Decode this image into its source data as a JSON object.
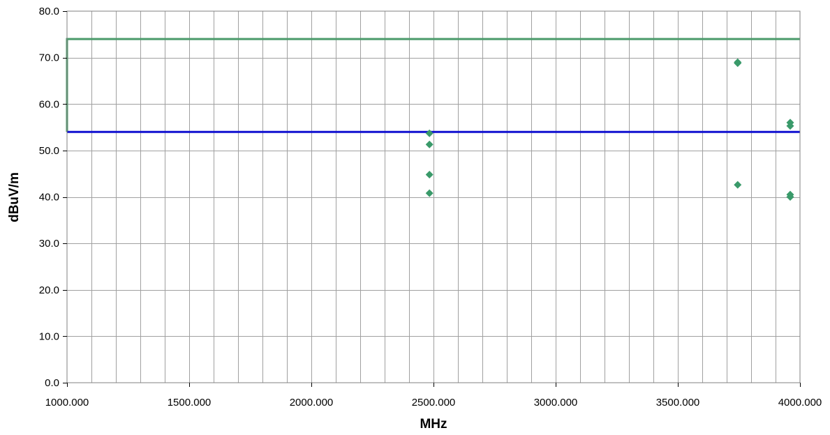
{
  "chart_data": {
    "type": "scatter",
    "title": "",
    "xlabel": "MHz",
    "ylabel": "dBuV/m",
    "xlim": [
      1000,
      4000
    ],
    "ylim": [
      0,
      80
    ],
    "x_ticks": [
      "1000.000",
      "1500.000",
      "2000.000",
      "2500.000",
      "3000.000",
      "3500.000",
      "4000.000"
    ],
    "y_ticks": [
      "0.0",
      "10.0",
      "20.0",
      "30.0",
      "40.0",
      "50.0",
      "60.0",
      "70.0",
      "80.0"
    ],
    "x_tick_values": [
      1000,
      1500,
      2000,
      2500,
      3000,
      3500,
      4000
    ],
    "y_tick_values": [
      0,
      10,
      20,
      30,
      40,
      50,
      60,
      70,
      80
    ],
    "x_minor_step": 100,
    "y_minor_step": 10,
    "grid": true,
    "legend": "none",
    "series": [
      {
        "type": "scatter",
        "color": "#3a9a6a",
        "points": [
          [
            2483.5,
            53.7
          ],
          [
            2483.5,
            51.3
          ],
          [
            2483.5,
            44.8
          ],
          [
            2483.5,
            40.8
          ],
          [
            3745,
            69.0
          ],
          [
            3745,
            68.8
          ],
          [
            3745,
            42.6
          ],
          [
            3960,
            56.0
          ],
          [
            3960,
            55.3
          ],
          [
            3960,
            40.5
          ],
          [
            3960,
            40.0
          ]
        ]
      },
      {
        "type": "line",
        "color": "#4a9a6a",
        "points": [
          [
            1000,
            54
          ],
          [
            1000,
            74
          ],
          [
            4000,
            74
          ]
        ]
      },
      {
        "type": "line",
        "color": "#1010d0",
        "points": [
          [
            1000,
            54
          ],
          [
            4000,
            54
          ]
        ]
      }
    ]
  }
}
